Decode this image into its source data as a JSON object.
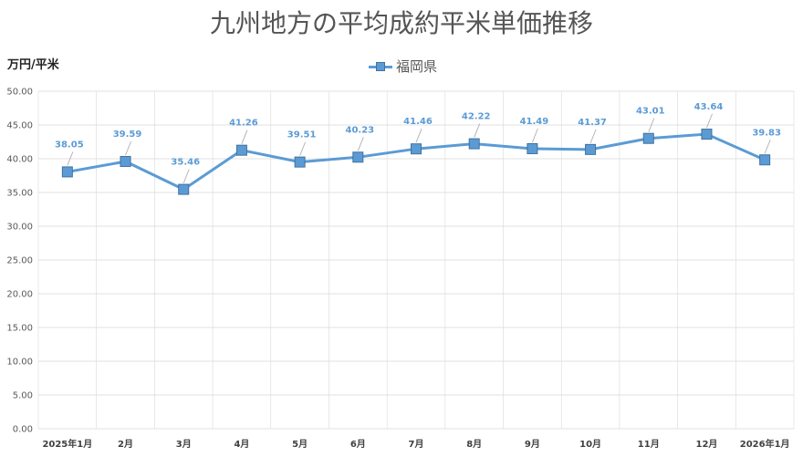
{
  "chart_data": {
    "type": "line",
    "title": "九州地方の平均成約平米単価推移",
    "ylabel": "万円/平米",
    "xlabel": "",
    "categories": [
      "2025年1月",
      "2月",
      "3月",
      "4月",
      "5月",
      "6月",
      "7月",
      "8月",
      "9月",
      "10月",
      "11月",
      "12月",
      "2026年1月"
    ],
    "series": [
      {
        "name": "福岡県",
        "values": [
          38.05,
          39.59,
          35.46,
          41.26,
          39.51,
          40.23,
          41.46,
          42.22,
          41.49,
          41.37,
          43.01,
          43.64,
          39.83
        ],
        "labels": [
          "38.05",
          "39.59",
          "35.46",
          "41.26",
          "39.51",
          "40.23",
          "41.46",
          "42.22",
          "41.49",
          "41.37",
          "43.01",
          "43.64",
          "39.83"
        ]
      }
    ],
    "ylim": [
      0,
      50
    ],
    "yticks": [
      "0.00",
      "5.00",
      "10.00",
      "15.00",
      "20.00",
      "25.00",
      "30.00",
      "35.00",
      "40.00",
      "45.00",
      "50.00"
    ],
    "grid": true,
    "legend": "top-center",
    "colors": {
      "line": "#5b9bd5",
      "marker_border": "#41719c",
      "labels": "#5b9bd5",
      "grid": "#d9d9d9"
    }
  }
}
